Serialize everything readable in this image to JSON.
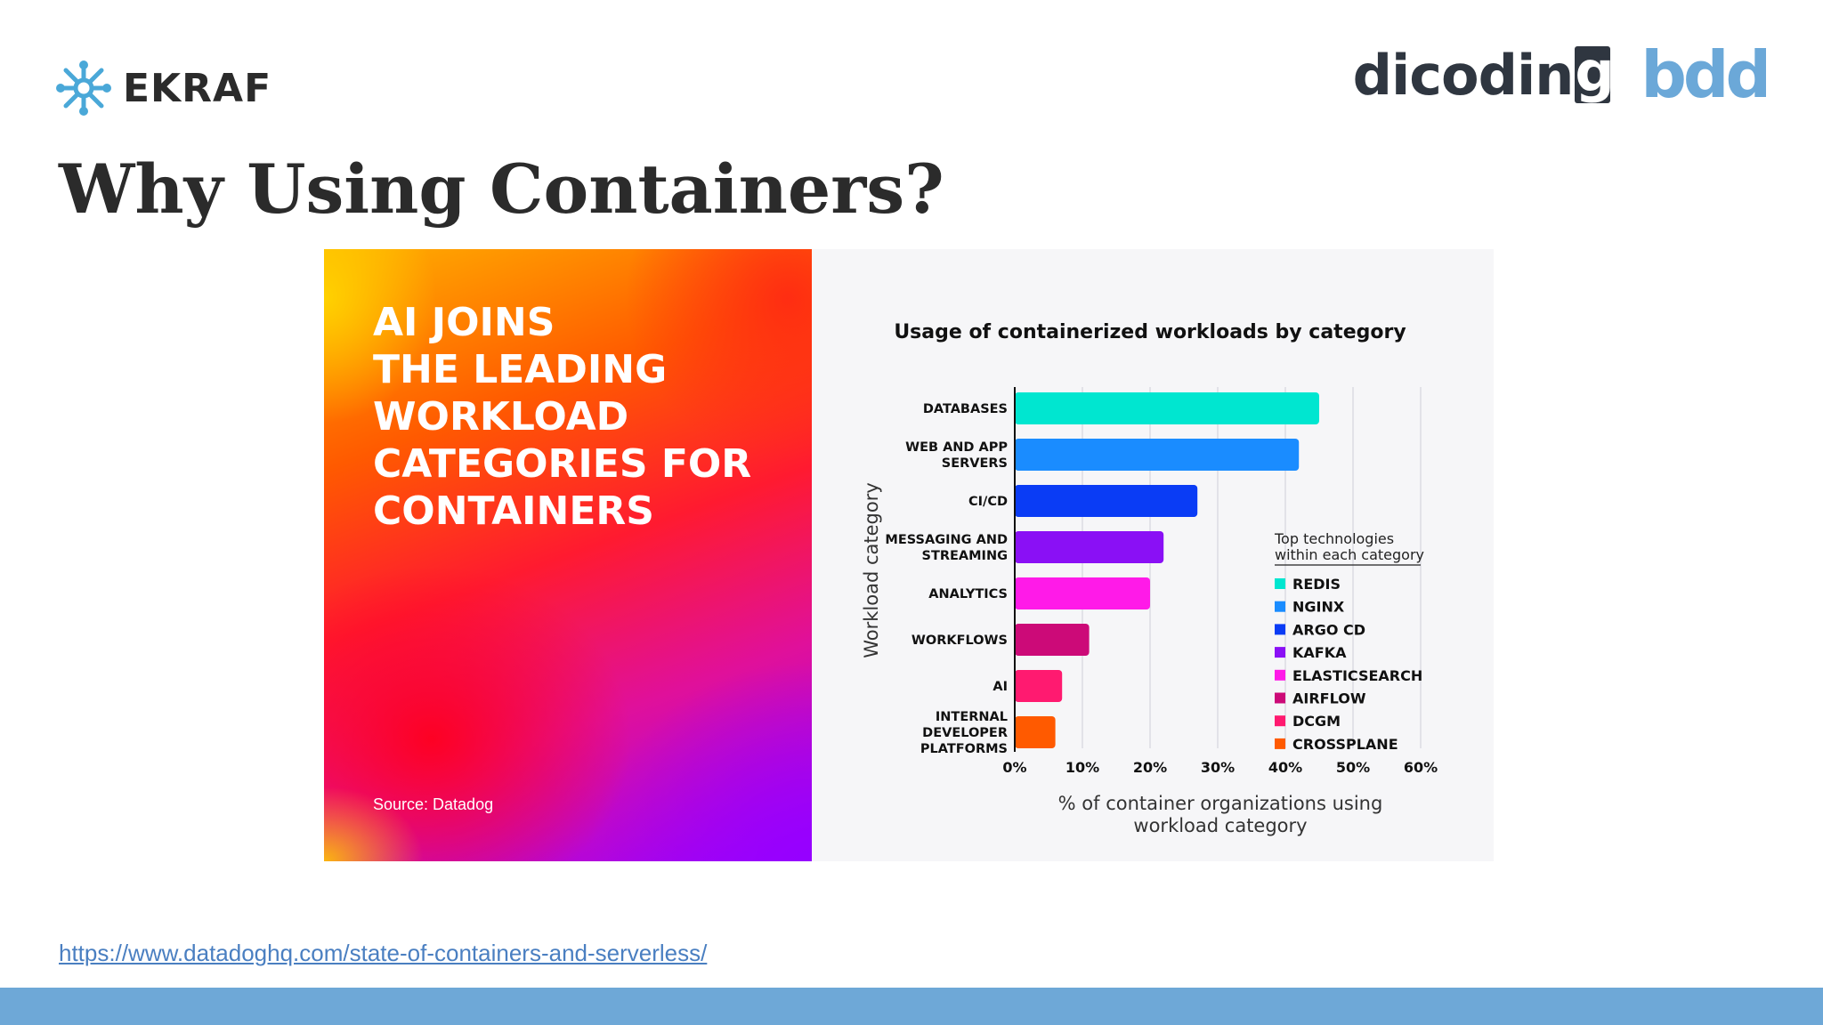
{
  "header": {
    "logo_text": "EKRAF",
    "partner_logos": {
      "dicoding_text": "dicodin",
      "dicoding_badge": "g",
      "bdd_text": "bdd"
    },
    "title": "Why Using Containers?"
  },
  "promo": {
    "headline_lines": [
      "AI JOINS",
      "THE LEADING",
      "WORKLOAD",
      "CATEGORIES FOR",
      "CONTAINERS"
    ],
    "source": "Source: Datadog"
  },
  "chart_data": {
    "type": "bar",
    "orientation": "horizontal",
    "title": "Usage of containerized workloads by category",
    "xlabel": "% of container organizations using workload category",
    "ylabel": "Workload category",
    "categories": [
      [
        "DATABASES"
      ],
      [
        "WEB AND APP",
        "SERVERS"
      ],
      [
        "CI/CD"
      ],
      [
        "MESSAGING AND",
        "STREAMING"
      ],
      [
        "ANALYTICS"
      ],
      [
        "WORKFLOWS"
      ],
      [
        "AI"
      ],
      [
        "INTERNAL",
        "DEVELOPER",
        "PLATFORMS"
      ]
    ],
    "values": [
      45,
      42,
      27,
      22,
      20,
      11,
      7,
      6
    ],
    "colors": [
      "#00e6d0",
      "#1a8cff",
      "#0a3cf5",
      "#8a10f5",
      "#ff1ae8",
      "#cc0a78",
      "#ff1a70",
      "#ff5a00"
    ],
    "xlim": [
      0,
      60
    ],
    "xticks": [
      "0%",
      "10%",
      "20%",
      "30%",
      "40%",
      "50%",
      "60%"
    ],
    "grid": true,
    "legend": {
      "title_lines": [
        "Top technologies",
        "within each category"
      ],
      "position": "right",
      "items": [
        "REDIS",
        "NGINX",
        "ARGO CD",
        "KAFKA",
        "ELASTICSEARCH",
        "AIRFLOW",
        "DCGM",
        "CROSSPLANE"
      ]
    }
  },
  "footer": {
    "link": "https://www.datadoghq.com/state-of-containers-and-serverless/",
    "bar_color": "#6ea8d7"
  }
}
